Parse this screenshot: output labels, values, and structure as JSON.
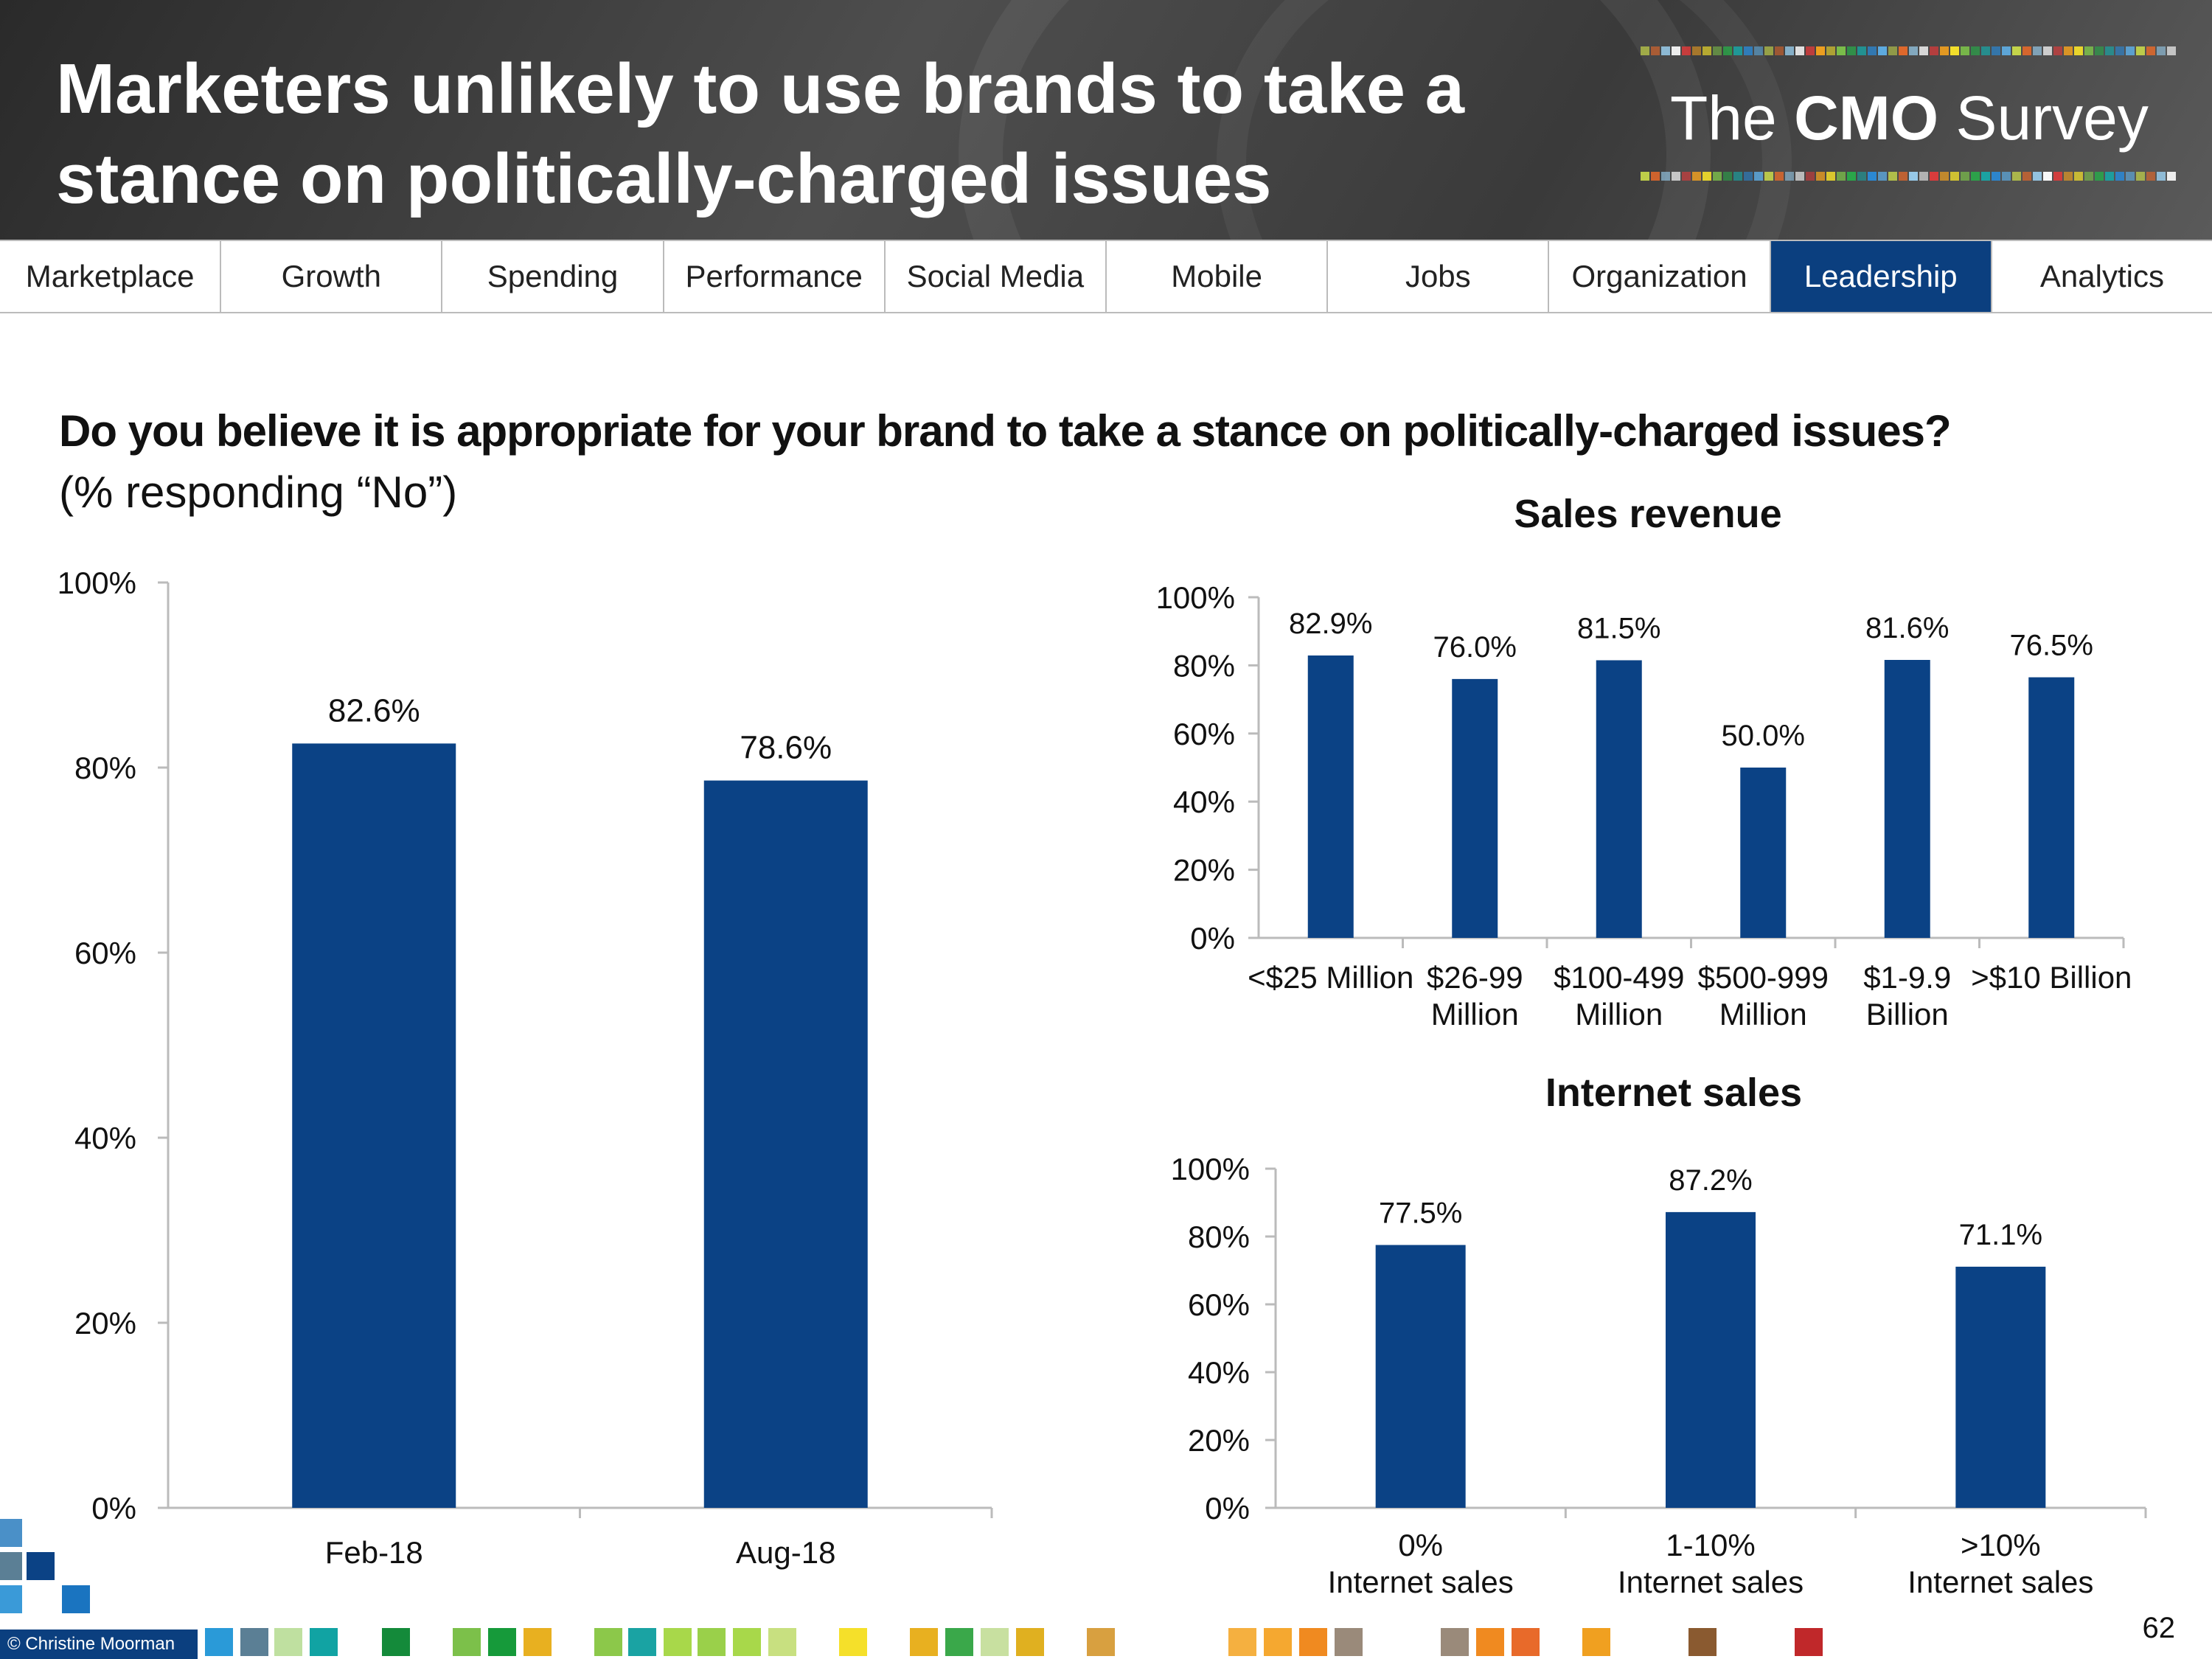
{
  "header": {
    "title_line1": "Marketers unlikely to use brands to take a",
    "title_line2": "stance on politically-charged issues",
    "logo_prefix": "The",
    "logo_bold": "CMO",
    "logo_suffix": "Survey"
  },
  "nav": {
    "tabs": [
      {
        "label": "Marketplace",
        "active": false
      },
      {
        "label": "Growth",
        "active": false
      },
      {
        "label": "Spending",
        "active": false
      },
      {
        "label": "Performance",
        "active": false
      },
      {
        "label": "Social Media",
        "active": false
      },
      {
        "label": "Mobile",
        "active": false
      },
      {
        "label": "Jobs",
        "active": false
      },
      {
        "label": "Organization",
        "active": false
      },
      {
        "label": "Leadership",
        "active": true
      },
      {
        "label": "Analytics",
        "active": false
      }
    ],
    "active_color": "#0b3f7f"
  },
  "question": "Do you believe it is appropriate for your brand to take a stance on politically-charged issues?",
  "subquestion": "(% responding “No”)",
  "footer": {
    "copyright": "© Christine Moorman",
    "page_number": "62"
  },
  "bar_color": "#0b4285",
  "chart_data": [
    {
      "type": "bar",
      "title": "",
      "categories": [
        "Feb-18",
        "Aug-18"
      ],
      "values": [
        82.6,
        78.6
      ],
      "data_labels": [
        "82.6%",
        "78.6%"
      ],
      "y_ticks": [
        "0%",
        "20%",
        "40%",
        "60%",
        "80%",
        "100%"
      ],
      "ylim": [
        0,
        100
      ],
      "grid": false
    },
    {
      "type": "bar",
      "title": "Sales revenue",
      "categories": [
        [
          "<$25 Million"
        ],
        [
          "$26-99",
          "Million"
        ],
        [
          "$100-499",
          "Million"
        ],
        [
          "$500-999",
          "Million"
        ],
        [
          "$1-9.9",
          "Billion"
        ],
        [
          ">$10 Billion"
        ]
      ],
      "values": [
        82.9,
        76.0,
        81.5,
        50.0,
        81.6,
        76.5
      ],
      "data_labels": [
        "82.9%",
        "76.0%",
        "81.5%",
        "50.0%",
        "81.6%",
        "76.5%"
      ],
      "y_ticks": [
        "0%",
        "20%",
        "40%",
        "60%",
        "80%",
        "100%"
      ],
      "ylim": [
        0,
        100
      ],
      "grid": false
    },
    {
      "type": "bar",
      "title": "Internet sales",
      "categories": [
        [
          "0%",
          "Internet sales"
        ],
        [
          "1-10%",
          "Internet sales"
        ],
        [
          ">10%",
          "Internet sales"
        ]
      ],
      "values": [
        77.5,
        87.2,
        71.1
      ],
      "data_labels": [
        "77.5%",
        "87.2%",
        "71.1%"
      ],
      "y_ticks": [
        "0%",
        "20%",
        "40%",
        "60%",
        "80%",
        "100%"
      ],
      "ylim": [
        0,
        100
      ],
      "grid": false
    }
  ]
}
